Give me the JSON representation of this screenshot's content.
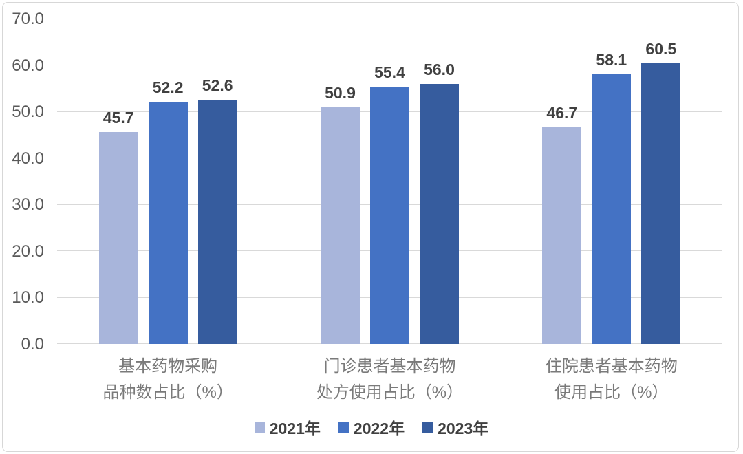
{
  "chart_data": {
    "type": "bar",
    "title": "",
    "categories": [
      "基本药物采购\n品种数占比（%）",
      "门诊患者基本药物\n处方使用占比（%）",
      "住院患者基本药物\n使用占比（%）"
    ],
    "series": [
      {
        "name": "2021年",
        "color": "#A8B5DB",
        "values": [
          45.7,
          50.9,
          46.7
        ]
      },
      {
        "name": "2022年",
        "color": "#4472C4",
        "values": [
          52.2,
          55.4,
          58.1
        ]
      },
      {
        "name": "2023年",
        "color": "#365C9E",
        "values": [
          52.6,
          56.0,
          60.5
        ]
      }
    ],
    "ylim": [
      0,
      70
    ],
    "yticks": [
      "0.0",
      "10.0",
      "20.0",
      "30.0",
      "40.0",
      "50.0",
      "60.0",
      "70.0"
    ],
    "grid": true,
    "legend_position": "bottom",
    "value_label_decimals": 1
  },
  "style_colors": {
    "gridline": "#d9d9d9",
    "border": "#d7d7d7",
    "axis_text": "#595959",
    "value_label_text": "#404040",
    "category_text": "#7a7a7a"
  }
}
